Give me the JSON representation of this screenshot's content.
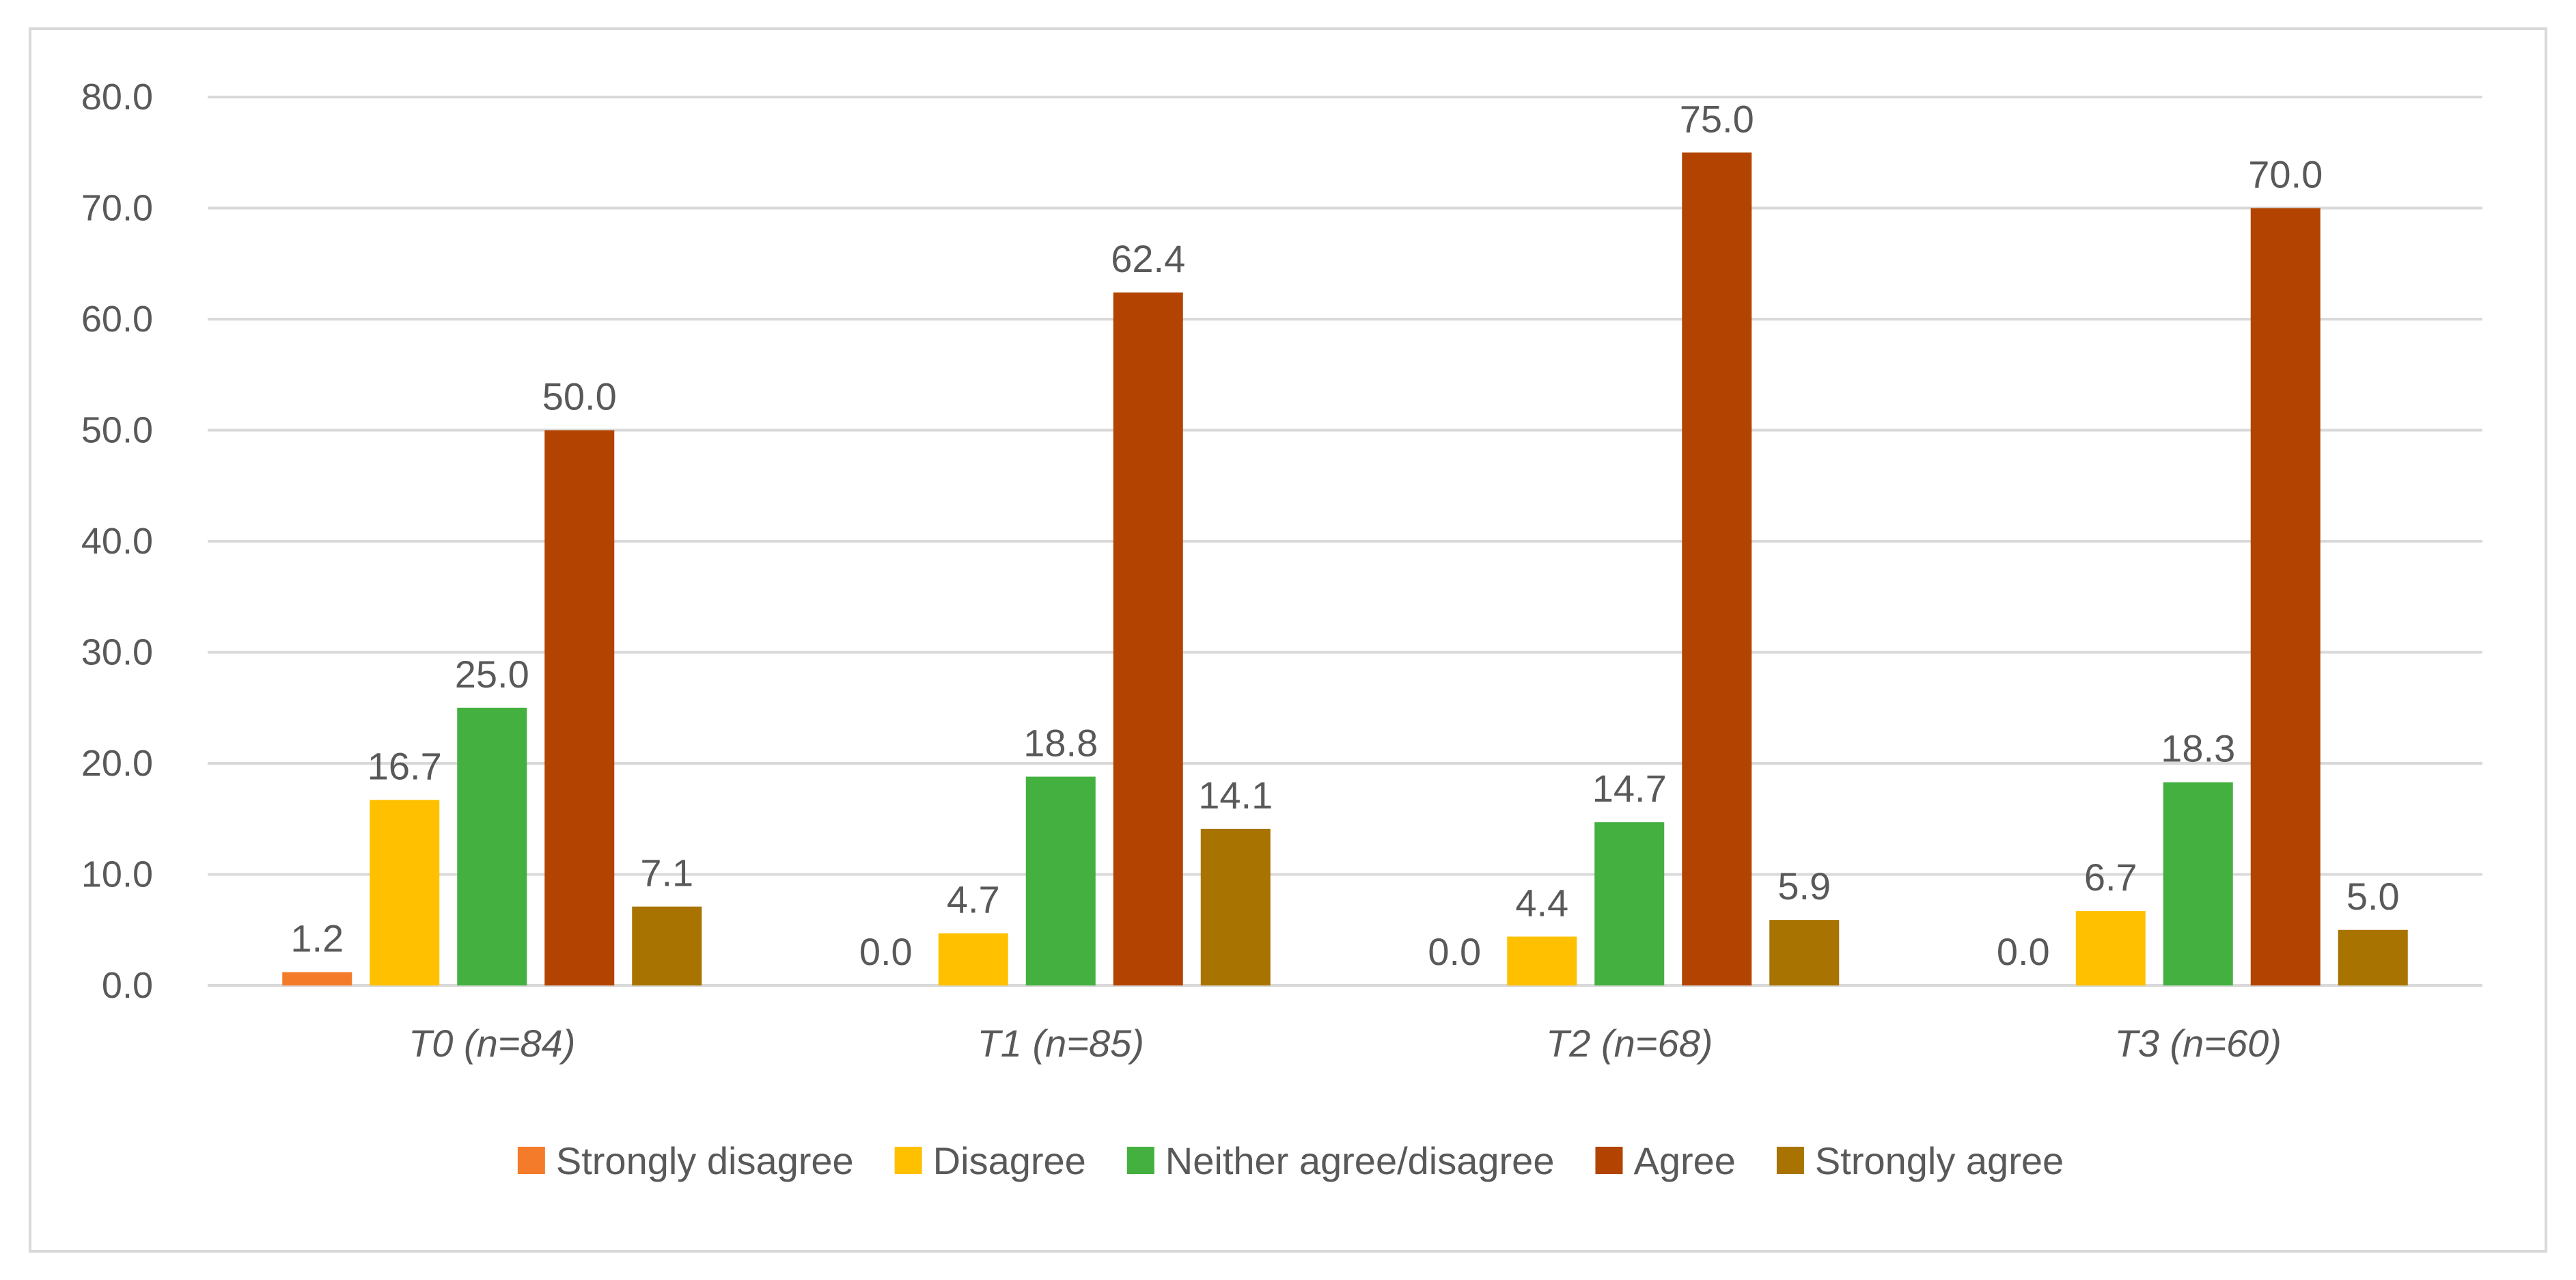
{
  "chart_data": {
    "type": "bar",
    "title": "",
    "xlabel": "",
    "ylabel": "",
    "ylim": [
      0,
      80
    ],
    "yticks": [
      "0.0",
      "10.0",
      "20.0",
      "30.0",
      "40.0",
      "50.0",
      "60.0",
      "70.0",
      "80.0"
    ],
    "categories": [
      "T0 (n=84)",
      "T1 (n=85)",
      "T2 (n=68)",
      "T3 (n=60)"
    ],
    "series": [
      {
        "name": "Strongly disagree",
        "color": "#f47b2a",
        "values": [
          1.2,
          0.0,
          0.0,
          0.0
        ],
        "labels": [
          "1.2",
          "0.0",
          "0.0",
          "0.0"
        ]
      },
      {
        "name": "Disagree",
        "color": "#ffc000",
        "values": [
          16.7,
          4.7,
          4.4,
          6.7
        ],
        "labels": [
          "16.7",
          "4.7",
          "4.4",
          "6.7"
        ]
      },
      {
        "name": "Neither agree/disagree",
        "color": "#43b040",
        "values": [
          25.0,
          18.8,
          14.7,
          18.3
        ],
        "labels": [
          "25.0",
          "18.8",
          "14.7",
          "18.3"
        ]
      },
      {
        "name": "Agree",
        "color": "#b24300",
        "values": [
          50.0,
          62.4,
          75.0,
          70.0
        ],
        "labels": [
          "50.0",
          "62.4",
          "75.0",
          "70.0"
        ]
      },
      {
        "name": "Strongly agree",
        "color": "#a87300",
        "values": [
          7.1,
          14.1,
          5.9,
          5.0
        ],
        "labels": [
          "7.1",
          "14.1",
          "5.9",
          "5.0"
        ]
      }
    ],
    "grid": true,
    "legend_position": "bottom"
  },
  "colors": {
    "gridline": "#d9d9d9",
    "text": "#595959",
    "border": "#d9d9d9"
  }
}
